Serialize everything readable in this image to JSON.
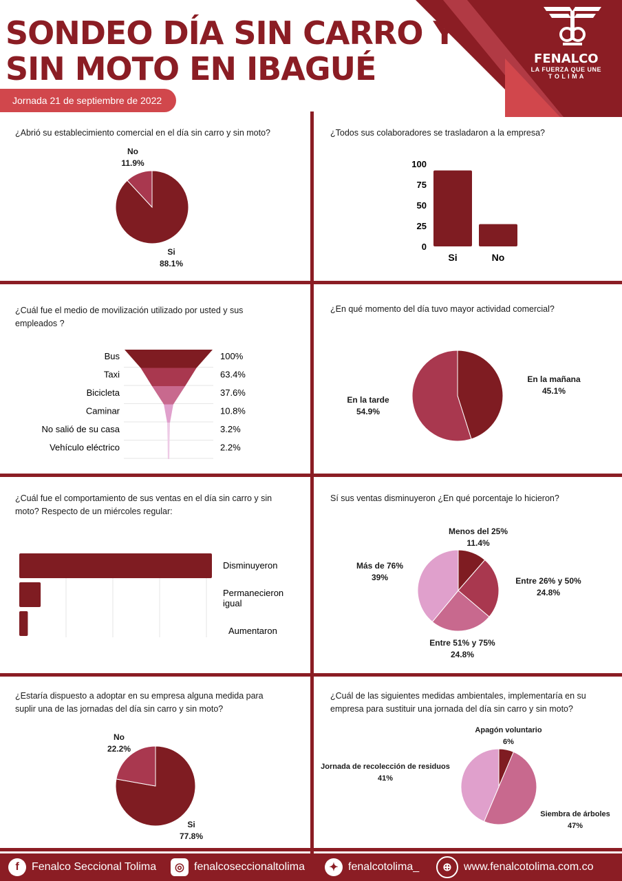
{
  "header": {
    "title_line1": "SONDEO DÍA SIN CARRO Y",
    "title_line2": "SIN MOTO EN IBAGUÉ",
    "date": "Jornada 21 de septiembre de 2022",
    "logo_name": "FENALCO",
    "logo_tagline1": "LA FUERZA QUE UNE",
    "logo_tagline2": "T O L I M A"
  },
  "colors": {
    "dark": "#7f1c22",
    "medium": "#a9384f",
    "pink": "#c8698e",
    "light_pink": "#e0a0cc",
    "very_light": "#eecbe6",
    "brand": "#8b1d24"
  },
  "q1": {
    "question": "¿Abrió su establecimiento comercial en el día sin carro y sin moto?",
    "labels": {
      "no": "No",
      "no_value": "11.9%",
      "si": "Si",
      "si_value": "88.1%"
    }
  },
  "q2": {
    "question": "¿Todos sus colaboradores se trasladaron a la empresa?"
  },
  "q3": {
    "question_line1": "¿Cuál fue el medio de movilización utilizado por usted y sus",
    "question_line2": "empleados ?"
  },
  "q4": {
    "question": "¿En qué momento del día tuvo mayor actividad comercial?",
    "labels": {
      "manana": "En la mañana",
      "manana_value": "45.1%",
      "tarde": "En la tarde",
      "tarde_value": "54.9%"
    }
  },
  "q5": {
    "question_line1": "¿Cuál fue el comportamiento de sus ventas en el día sin carro y sin",
    "question_line2": "moto? Respecto de un miércoles regular:"
  },
  "q6": {
    "question": "Sí sus ventas disminuyeron ¿En qué porcentaje lo hicieron?",
    "labels": {
      "a": "Menos del 25%",
      "a_value": "11.4%",
      "b": "Entre 26% y 50%",
      "b_value": "24.8%",
      "c": "Entre 51% y 75%",
      "c_value": "24.8%",
      "d": "Más de 76%",
      "d_value": "39%"
    }
  },
  "q7": {
    "question_line1": "¿Estaría dispuesto a adoptar en su empresa alguna medida para",
    "question_line2": "suplir una de las jornadas del día sin carro y sin moto?",
    "labels": {
      "no": "No",
      "no_value": "22.2%",
      "si": "Si",
      "si_value": "77.8%"
    }
  },
  "q8": {
    "question_line1": "¿Cuál de las siguientes medidas ambientales, implementaría en su",
    "question_line2": "empresa para sustituir una jornada del día sin carro y sin moto?",
    "labels": {
      "a": "Apagón voluntario",
      "a_value": "6%",
      "b": "Siembra de árboles",
      "b_value": "47%",
      "c": "Jornada de recolección de residuos",
      "c_value": "41%"
    }
  },
  "chart_data": [
    {
      "type": "pie",
      "categories": [
        "Si",
        "No"
      ],
      "values": [
        88.1,
        11.9
      ]
    },
    {
      "type": "bar",
      "categories": [
        "Si",
        "No"
      ],
      "values": [
        92,
        27
      ],
      "ylim": [
        0,
        100
      ],
      "yticks": [
        "100",
        "75",
        "50",
        "25",
        "0"
      ]
    },
    {
      "type": "funnel",
      "categories": [
        "Bus",
        "Taxi",
        "Bicicleta",
        "Caminar",
        "No salió de su casa",
        "Vehículo eléctrico"
      ],
      "values": [
        100,
        63.4,
        37.6,
        10.8,
        3.2,
        2.2
      ],
      "value_labels": [
        "100%",
        "63.4%",
        "37.6%",
        "10.8%",
        "3.2%",
        "2.2%"
      ]
    },
    {
      "type": "pie",
      "categories": [
        "En la mañana",
        "En la tarde"
      ],
      "values": [
        45.1,
        54.9
      ]
    },
    {
      "type": "bar",
      "orientation": "horizontal",
      "categories": [
        "Disminuyeron",
        "Permanecieron igual",
        "Aumentaron"
      ],
      "values": [
        90,
        10,
        4
      ]
    },
    {
      "type": "pie",
      "categories": [
        "Menos del 25%",
        "Entre 26% y 50%",
        "Entre 51% y 75%",
        "Más de 76%"
      ],
      "values": [
        11.4,
        24.8,
        24.8,
        39
      ]
    },
    {
      "type": "pie",
      "categories": [
        "Si",
        "No"
      ],
      "values": [
        77.8,
        22.2
      ]
    },
    {
      "type": "pie",
      "categories": [
        "Apagón voluntario",
        "Siembra de árboles",
        "Jornada de recolección de residuos"
      ],
      "values": [
        6,
        47,
        41
      ]
    }
  ],
  "footer": {
    "facebook": "Fenalco Seccional Tolima",
    "instagram": "fenalcoseccionaltolima",
    "twitter": "fenalcotolima_",
    "web": "www.fenalcotolima.com.co"
  }
}
